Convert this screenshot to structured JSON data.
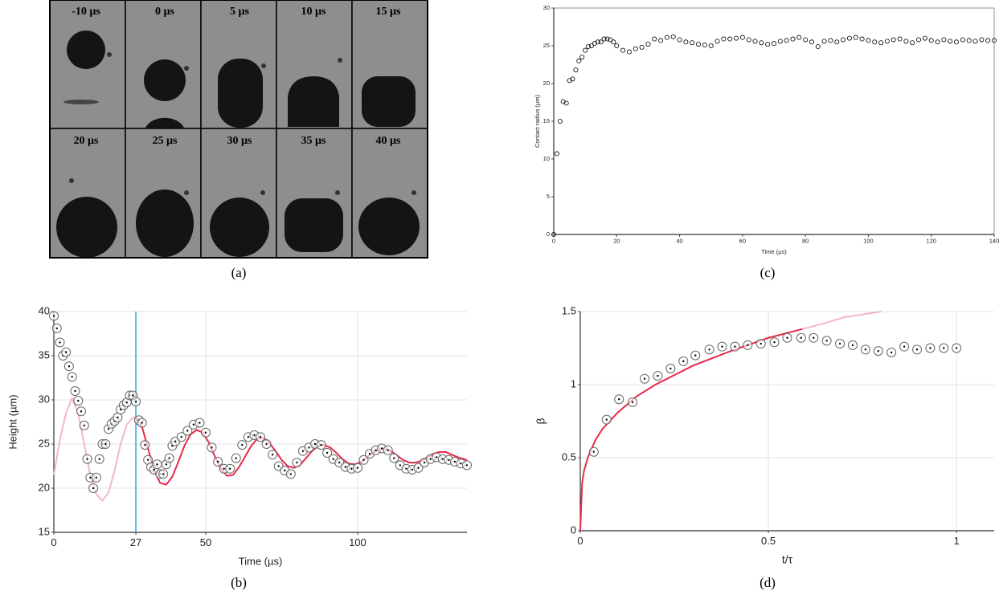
{
  "image_panel": {
    "frames": [
      "-10 µs",
      "0 µs",
      "5 µs",
      "10 µs",
      "15 µs",
      "20 µs",
      "25 µs",
      "30 µs",
      "35 µs",
      "40 µs"
    ],
    "caption": "(a)"
  },
  "chart_data": [
    {
      "type": "scatter",
      "caption": "(b)",
      "xlabel": "Time (µs)",
      "ylabel": "Height (µm)",
      "xlim": [
        0,
        136
      ],
      "xticks": [
        0,
        27,
        50,
        100
      ],
      "ylim": [
        15,
        40
      ],
      "yticks": [
        15,
        20,
        25,
        30,
        35,
        40
      ],
      "grid": true,
      "vline": {
        "x": 27,
        "color": "#2aa6dc"
      },
      "series": [
        {
          "type": "line",
          "color": "#f4b6c4",
          "x": [
            0,
            2,
            4,
            6,
            8,
            10,
            12,
            14,
            16,
            18,
            20,
            22,
            24,
            26,
            27
          ],
          "values": [
            21.5,
            25.5,
            28.5,
            30.2,
            28.5,
            25,
            21.5,
            19.3,
            18.6,
            19.5,
            22,
            25,
            27.2,
            28,
            28
          ]
        },
        {
          "type": "line",
          "color": "#e8294a",
          "x": [
            27,
            29,
            31,
            33,
            35,
            37,
            39,
            41,
            43,
            45,
            47,
            49,
            51,
            53,
            55,
            57,
            59,
            61,
            63,
            65,
            67,
            69,
            71,
            73,
            75,
            77,
            79,
            81,
            83,
            85,
            87,
            89,
            91,
            93,
            95,
            97,
            99,
            101,
            103,
            105,
            107,
            109,
            111,
            113,
            115,
            117,
            119,
            121,
            123,
            125,
            127,
            129,
            131,
            133,
            136
          ],
          "values": [
            28,
            27,
            24.5,
            22,
            20.6,
            20.4,
            21.3,
            23,
            24.8,
            26.1,
            26.6,
            26.3,
            25.2,
            23.6,
            22.2,
            21.4,
            21.5,
            22.4,
            23.6,
            24.8,
            25.6,
            25.7,
            25.1,
            24.2,
            23.2,
            22.5,
            22.3,
            22.6,
            23.4,
            24.2,
            24.8,
            24.9,
            24.6,
            24,
            23.3,
            22.8,
            22.7,
            22.9,
            23.5,
            24,
            24.4,
            24.5,
            24.2,
            23.7,
            23.2,
            22.9,
            22.9,
            23.1,
            23.5,
            23.9,
            24.1,
            24.1,
            23.8,
            23.5,
            23.2
          ]
        },
        {
          "type": "scatter",
          "color": "#666666",
          "marker": "circle-dot",
          "x": [
            0,
            1,
            2,
            3,
            4,
            5,
            6,
            7,
            8,
            9,
            10,
            11,
            12,
            13,
            14,
            15,
            16,
            17,
            18,
            19,
            20,
            21,
            22,
            23,
            24,
            25,
            26,
            27,
            28,
            29,
            30,
            31,
            32,
            33,
            34,
            35,
            36,
            37,
            38,
            39,
            40,
            42,
            44,
            46,
            48,
            50,
            52,
            54,
            56,
            58,
            60,
            62,
            64,
            66,
            68,
            70,
            72,
            74,
            76,
            78,
            80,
            82,
            84,
            86,
            88,
            90,
            92,
            94,
            96,
            98,
            100,
            102,
            104,
            106,
            108,
            110,
            112,
            114,
            116,
            118,
            120,
            122,
            124,
            126,
            128,
            130,
            132,
            134,
            136
          ],
          "values": [
            39.5,
            38.1,
            36.5,
            35,
            35.4,
            33.8,
            32.6,
            31,
            29.9,
            28.7,
            27.1,
            23.3,
            21.2,
            20,
            21.2,
            23.3,
            25,
            25,
            26.7,
            27.3,
            27.6,
            28,
            28.9,
            29.4,
            29.7,
            30.5,
            30.5,
            29.8,
            27.7,
            27.4,
            24.9,
            23.2,
            22.4,
            22.1,
            22.7,
            21.6,
            21.6,
            22.7,
            23.4,
            24.8,
            25.3,
            25.8,
            26.5,
            27.2,
            27.4,
            26.3,
            24.6,
            23,
            22.2,
            22.2,
            23.4,
            24.9,
            25.8,
            26,
            25.8,
            25,
            23.8,
            22.5,
            22,
            21.6,
            22.9,
            24.2,
            24.6,
            25,
            24.9,
            24,
            23.3,
            22.9,
            22.4,
            22.2,
            22.3,
            23.2,
            23.9,
            24.3,
            24.5,
            24.3,
            23.4,
            22.6,
            22.2,
            22.1,
            22.3,
            22.9,
            23.3,
            23.5,
            23.3,
            23.2,
            23,
            22.8,
            22.6
          ]
        }
      ]
    },
    {
      "type": "scatter",
      "caption": "(c)",
      "xlabel": "Time (µs)",
      "ylabel": "Contact radius (µm)",
      "xlim": [
        0,
        140
      ],
      "xticks": [
        0,
        20,
        40,
        60,
        80,
        100,
        120,
        140
      ],
      "ylim": [
        0,
        30
      ],
      "yticks": [
        0,
        5,
        10,
        15,
        20,
        25,
        30
      ],
      "grid": false,
      "frame": true,
      "series": [
        {
          "type": "scatter",
          "color": "#000000",
          "marker": "circle",
          "x": [
            0,
            1,
            2,
            3,
            4,
            5,
            6,
            7,
            8,
            9,
            10,
            11,
            12,
            13,
            14,
            15,
            16,
            17,
            18,
            19,
            20,
            22,
            24,
            26,
            28,
            30,
            32,
            34,
            36,
            38,
            40,
            42,
            44,
            46,
            48,
            50,
            52,
            54,
            56,
            58,
            60,
            62,
            64,
            66,
            68,
            70,
            72,
            74,
            76,
            78,
            80,
            82,
            84,
            86,
            88,
            90,
            92,
            94,
            96,
            98,
            100,
            102,
            104,
            106,
            108,
            110,
            112,
            114,
            116,
            118,
            120,
            122,
            124,
            126,
            128,
            130,
            132,
            134,
            136,
            138,
            140
          ],
          "values": [
            0,
            10.7,
            15,
            17.6,
            17.4,
            20.4,
            20.6,
            21.8,
            23,
            23.5,
            24.4,
            24.9,
            25,
            25.3,
            25.5,
            25.5,
            25.9,
            25.9,
            25.8,
            25.5,
            25,
            24.4,
            24.2,
            24.6,
            24.8,
            25.2,
            25.9,
            25.7,
            26.1,
            26.2,
            25.8,
            25.5,
            25.4,
            25.2,
            25.1,
            25,
            25.6,
            25.9,
            25.9,
            26,
            26.1,
            25.8,
            25.6,
            25.4,
            25.2,
            25.3,
            25.6,
            25.7,
            25.9,
            26.1,
            25.8,
            25.5,
            24.9,
            25.6,
            25.7,
            25.5,
            25.8,
            26,
            26.1,
            25.9,
            25.7,
            25.5,
            25.4,
            25.6,
            25.8,
            25.9,
            25.6,
            25.4,
            25.8,
            26,
            25.7,
            25.5,
            25.8,
            25.6,
            25.5,
            25.8,
            25.7,
            25.6,
            25.8,
            25.7,
            25.7
          ]
        }
      ]
    },
    {
      "type": "scatter",
      "caption": "(d)",
      "xlabel": "t/τ",
      "ylabel": "β",
      "xlim": [
        0,
        1.1
      ],
      "xticks": [
        0,
        0.5,
        1
      ],
      "ylim": [
        0,
        1.5
      ],
      "yticks": [
        0,
        0.5,
        1,
        1.5
      ],
      "grid": true,
      "series": [
        {
          "type": "line",
          "color": "#f4b6c4",
          "x": [
            0.59,
            0.65,
            0.7,
            0.8
          ],
          "values": [
            1.38,
            1.42,
            1.46,
            1.5
          ]
        },
        {
          "type": "line",
          "color": "#e8294a",
          "x": [
            0,
            0.005,
            0.01,
            0.02,
            0.04,
            0.06,
            0.1,
            0.15,
            0.2,
            0.3,
            0.4,
            0.5,
            0.59
          ],
          "values": [
            0,
            0.33,
            0.41,
            0.5,
            0.62,
            0.7,
            0.81,
            0.92,
            1,
            1.13,
            1.23,
            1.32,
            1.38
          ]
        },
        {
          "type": "scatter",
          "color": "#666666",
          "marker": "circle-dot",
          "x": [
            0.036,
            0.07,
            0.103,
            0.139,
            0.171,
            0.206,
            0.24,
            0.274,
            0.306,
            0.343,
            0.377,
            0.411,
            0.445,
            0.48,
            0.516,
            0.55,
            0.587,
            0.62,
            0.655,
            0.69,
            0.724,
            0.758,
            0.792,
            0.827,
            0.861,
            0.895,
            0.93,
            0.966,
            1
          ],
          "values": [
            0.54,
            0.76,
            0.9,
            0.88,
            1.04,
            1.06,
            1.11,
            1.16,
            1.2,
            1.24,
            1.26,
            1.26,
            1.27,
            1.28,
            1.29,
            1.32,
            1.32,
            1.32,
            1.3,
            1.28,
            1.27,
            1.24,
            1.23,
            1.22,
            1.26,
            1.24,
            1.25,
            1.25,
            1.25
          ]
        }
      ]
    }
  ]
}
